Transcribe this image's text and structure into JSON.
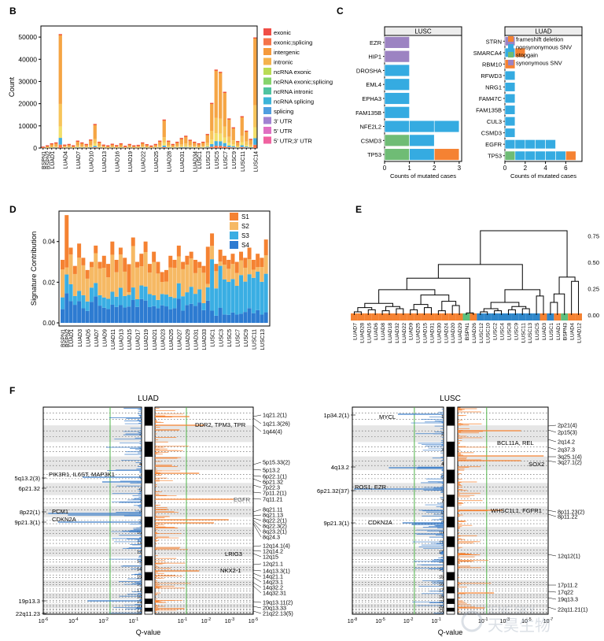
{
  "panel_letters": {
    "b": "B",
    "c": "C",
    "d": "D",
    "e": "E",
    "f": "F"
  },
  "watermark": {
    "brand": "GENE SKY",
    "cn": "天昊生物"
  },
  "colors": {
    "s1": "#f58232",
    "s2": "#f6b964",
    "s3": "#3aaee3",
    "s4": "#2d7bd1",
    "frameshift": "#f58232",
    "nonsyn": "#35abe1",
    "stopgain": "#6fbc75",
    "syn": "#9c83c2",
    "luad": "#f58232",
    "lusc": "#2e86c9",
    "other_leaf": "#5cc07e",
    "amp": "#f58232",
    "del": "#3a7cc8",
    "sig_line": "#4fb448"
  },
  "chart_data": [
    {
      "id": "B",
      "type": "bar",
      "stacked": true,
      "xlabel": "",
      "ylabel": "Count",
      "ylim": [
        0,
        55000
      ],
      "yticks": [
        0,
        10000,
        20000,
        30000,
        40000,
        50000
      ],
      "yticklabels": [
        "0",
        "10000",
        "20000",
        "30000",
        "40000",
        "50000"
      ],
      "legend_position": "right",
      "legend": [
        "exonic",
        "exonic;splicing",
        "intergenic",
        "intronic",
        "ncRNA exonic",
        "ncRNA exonic;splicing",
        "ncRNA intronic",
        "ncRNA splicing",
        "splicing",
        "3' UTR",
        "5' UTR",
        "5' UTR;3' UTR"
      ],
      "legend_colors": [
        "#f04e46",
        "#f5744a",
        "#f59a3c",
        "#f5b24d",
        "#b9dc55",
        "#86d46b",
        "#4fc3a0",
        "#3cb4d8",
        "#4f9ee0",
        "#a182d2",
        "#e070c2",
        "#f062a0"
      ],
      "categories": [
        "BSPN1",
        "BSPN2",
        "LUAD1",
        "LUAD2",
        "LUAD3",
        "LUAD4",
        "LUAD5",
        "LUAD6",
        "LUAD7",
        "LUAD8",
        "LUAD9",
        "LUAD10",
        "LUAD11",
        "LUAD12",
        "LUAD13",
        "LUAD14",
        "LUAD15",
        "LUAD16",
        "LUAD17",
        "LUAD18",
        "LUAD19",
        "LUAD20",
        "LUAD21",
        "LUAD22",
        "LUAD23",
        "LUAD24",
        "LUAD25",
        "LUAD26",
        "LUAD27",
        "LUAD28",
        "LUAD29",
        "LUAD30",
        "LUAD31",
        "LUAD32",
        "LUAD33",
        "LUAD34",
        "LUSC1",
        "LUSC2",
        "LUSC3",
        "LUSC4",
        "LUSC5",
        "LUSC6",
        "LUSC7",
        "LUSC8",
        "LUSC9",
        "LUSC10",
        "LUSC11",
        "LUSC12",
        "LUSC13",
        "LUSC14"
      ],
      "shown_tick_labels": [
        "BSPN1",
        "BSPN2",
        "LUAD1",
        "LUAD4",
        "LUAD7",
        "LUAD10",
        "LUAD13",
        "LUAD16",
        "LUAD19",
        "LUAD22",
        "LUAD25",
        "LUAD28",
        "LUAD31",
        "LUAD34",
        "LUSC1",
        "LUSC3",
        "LUSC5",
        "LUSC7",
        "LUSC9",
        "LUSC11",
        "LUSC14"
      ],
      "totals": [
        300,
        900,
        1800,
        2200,
        51000,
        1200,
        1500,
        900,
        3000,
        2200,
        1500,
        3500,
        10500,
        2500,
        1200,
        900,
        1600,
        1000,
        1800,
        700,
        1500,
        900,
        1100,
        2200,
        1400,
        800,
        1500,
        3000,
        12500,
        3000,
        1500,
        2500,
        4200,
        5200,
        3400,
        2500,
        1800,
        2500,
        6000,
        20000,
        35000,
        34000,
        25000,
        13000,
        9000,
        2800,
        14000,
        7500,
        3800,
        49500
      ],
      "fractions": {
        "intronic": 0.6,
        "intergenic": 0.2,
        "ncRNA intronic": 0.1,
        "ncRNA exonic": 0.04,
        "exonic": 0.03,
        "3' UTR": 0.03
      }
    },
    {
      "id": "C-LUSC",
      "type": "bar",
      "orientation": "horizontal",
      "stacked": true,
      "title": "LUSC",
      "xlabel": "Counts of mutated cases",
      "ylabel": "",
      "xlim": [
        0,
        3.1
      ],
      "xticks": [
        0,
        1,
        2,
        3
      ],
      "categories": [
        "EZR",
        "HIP1",
        "DROSHA",
        "EML4",
        "EPHA3",
        "FAM135B",
        "NFE2L2",
        "CSMD3",
        "TP53"
      ],
      "series": [
        {
          "name": "stopgain",
          "values": [
            0,
            0,
            0,
            0,
            0,
            0,
            0,
            1,
            1
          ]
        },
        {
          "name": "nonsynonymous SNV",
          "values": [
            0,
            0,
            1,
            1,
            1,
            1,
            3,
            1,
            1
          ]
        },
        {
          "name": "frameshift deletion",
          "values": [
            0,
            0,
            0,
            0,
            0,
            0,
            0,
            0,
            1
          ]
        },
        {
          "name": "synonymous SNV",
          "values": [
            1,
            1,
            0,
            0,
            0,
            0,
            0,
            0,
            0
          ]
        }
      ]
    },
    {
      "id": "C-LUAD",
      "type": "bar",
      "orientation": "horizontal",
      "stacked": true,
      "title": "LUAD",
      "xlabel": "Counts of mutated cases",
      "ylabel": "",
      "xlim": [
        0,
        7.6
      ],
      "xticks": [
        0,
        2,
        4,
        6
      ],
      "categories": [
        "STRN",
        "SMARCA4",
        "RBM10",
        "RFWD3",
        "NRG1",
        "FAM47C",
        "FAM135B",
        "CUL3",
        "CSMD3",
        "EGFR",
        "TP53"
      ],
      "legend": [
        "frameshift deletion",
        "nonsynonymous SNV",
        "stopgain",
        "synonymous SNV"
      ],
      "legend_position": "top-right",
      "series": [
        {
          "name": "stopgain",
          "values": [
            0,
            0,
            0,
            0,
            0,
            0,
            0,
            0,
            0,
            0,
            1
          ]
        },
        {
          "name": "nonsynonymous SNV",
          "values": [
            0,
            1,
            0,
            1,
            1,
            1,
            1,
            1,
            1,
            5,
            5
          ]
        },
        {
          "name": "frameshift deletion",
          "values": [
            0,
            1,
            1,
            0,
            0,
            0,
            0,
            0,
            0,
            0,
            1
          ]
        },
        {
          "name": "synonymous SNV",
          "values": [
            1,
            0,
            0,
            0,
            0,
            0,
            0,
            0,
            0,
            0,
            0
          ]
        }
      ]
    },
    {
      "id": "D",
      "type": "bar",
      "stacked": true,
      "xlabel": "",
      "ylabel": "Signature Contribution",
      "ylim": [
        0,
        0.055
      ],
      "yticks": [
        0,
        0.02,
        0.04
      ],
      "yticklabels": [
        "0.00",
        "0.02",
        "0.04"
      ],
      "legend": [
        "S1",
        "S2",
        "S3",
        "S4"
      ],
      "legend_position": "top-right",
      "categories": [
        "BSPN1",
        "BSPN2",
        "LUAD1",
        "LUAD2",
        "LUAD3",
        "LUAD4",
        "LUAD5",
        "LUAD6",
        "LUAD7",
        "LUAD8",
        "LUAD9",
        "LUAD10",
        "LUAD11",
        "LUAD12",
        "LUAD13",
        "LUAD14",
        "LUAD15",
        "LUAD16",
        "LUAD17",
        "LUAD18",
        "LUAD19",
        "LUAD20",
        "LUAD21",
        "LUAD22",
        "LUAD23",
        "LUAD24",
        "LUAD25",
        "LUAD26",
        "LUAD27",
        "LUAD28",
        "LUAD29",
        "LUAD30",
        "LUAD31",
        "LUAD32",
        "LUAD33",
        "LUAD34",
        "LUSC1",
        "LUSC2",
        "LUSC3",
        "LUSC4",
        "LUSC5",
        "LUSC6",
        "LUSC7",
        "LUSC8",
        "LUSC9",
        "LUSC10",
        "LUSC11",
        "LUSC12",
        "LUSC13",
        "LUSC14"
      ],
      "shown_tick_labels": [
        "BSPN1",
        "BSPN2",
        "LUAD1",
        "LUAD3",
        "LUAD5",
        "LUAD7",
        "LUAD9",
        "LUAD11",
        "LUAD13",
        "LUAD15",
        "LUAD17",
        "LUAD19",
        "LUAD21",
        "LUAD23",
        "LUAD25",
        "LUAD27",
        "LUAD29",
        "LUAD31",
        "LUAD33",
        "LUSC1",
        "LUSC3",
        "LUSC5",
        "LUSC7",
        "LUSC9",
        "LUSC11",
        "LUSC13"
      ],
      "totals": [
        0.031,
        0.053,
        0.037,
        0.028,
        0.039,
        0.032,
        0.026,
        0.03,
        0.038,
        0.03,
        0.033,
        0.029,
        0.04,
        0.031,
        0.037,
        0.032,
        0.027,
        0.042,
        0.03,
        0.034,
        0.04,
        0.029,
        0.035,
        0.03,
        0.025,
        0.026,
        0.033,
        0.031,
        0.038,
        0.03,
        0.033,
        0.035,
        0.031,
        0.03,
        0.028,
        0.033,
        0.044,
        0.029,
        0.036,
        0.033,
        0.031,
        0.034,
        0.03,
        0.035,
        0.032,
        0.037,
        0.031,
        0.034,
        0.032,
        0.041
      ]
    },
    {
      "id": "E",
      "type": "dendrogram",
      "yticks": [
        0,
        0.25,
        0.5,
        0.75
      ],
      "yticklabels": [
        "0.00",
        "0.25",
        "0.50",
        "0.75"
      ],
      "leaves": [
        "LUAD7",
        "LUAD28",
        "LUAD16",
        "LUAD6",
        "LUAD8",
        "LUAD18",
        "LUAD32",
        "LUAD22",
        "LUAD9",
        "LUAD25",
        "LUAD15",
        "LUAD31",
        "LUAD30",
        "LUAD24",
        "LUAD20",
        "LUAD29",
        "BSPN1",
        "LUAD26",
        "LUSC12",
        "LUSC10",
        "LUSC2",
        "LUSC4",
        "LUSC8",
        "LUSC9",
        "LUSC11",
        "LUSC13",
        "LUSC5",
        "LUAD3",
        "LUSC1",
        "LUAD1",
        "BSPN3",
        "LUAD4",
        "LUAD12"
      ]
    },
    {
      "id": "F",
      "type": "copy-number-significance",
      "xlabel": "Q-value",
      "panels": [
        {
          "title": "LUAD",
          "del_xticks": [
            "10^-6",
            "10^-4",
            "10^-2",
            "10^-1"
          ],
          "amp_xticks": [
            "10^-1",
            "10^-2",
            "10^-3",
            "10^-5"
          ],
          "chromosomes": [
            "1",
            "2",
            "3",
            "4",
            "5",
            "6",
            "7",
            "8",
            "9",
            "10",
            "11",
            "12",
            "13",
            "14",
            "15",
            "16",
            "17",
            "18",
            "19",
            "20",
            "21",
            "22"
          ],
          "left_labels": [
            "5q13.2(3)",
            "6p21.32",
            "8p22(1)",
            "9p21.3(1)",
            "19p13.3",
            "22q11.23"
          ],
          "del_genes": [
            "PIK3R1, IL6ST, MAP3K1",
            "PCM1",
            "CDKN2A"
          ],
          "amp_genes": [
            "DDR2, TPM3, TPR",
            "EGFR",
            "LRIG3",
            "NKX2-1"
          ],
          "right_labels": [
            "1q21.2(1)",
            "1q21.3(26)",
            "1q44(4)",
            "5p15.33(2)",
            "5p13.2",
            "6p22.1(1)",
            "6p21.32",
            "7p22.3",
            "7p11.2(1)",
            "7q11.21",
            "8q21.11",
            "8q21.13",
            "8q22.2(1)",
            "8q22.3(2)",
            "8q23.2(1)",
            "8q24.3",
            "12q14.1(4)",
            "12q14.2",
            "12q15",
            "12q21.1",
            "14q13.3(1)",
            "14q21.1",
            "14q23.1",
            "14q32.2",
            "14q32.31",
            "19q13.11(2)",
            "20q13.33",
            "21q22.13(5)"
          ]
        },
        {
          "title": "LUSC",
          "del_xticks": [
            "10^-8",
            "10^-5",
            "10^-2",
            "10^-1"
          ],
          "amp_xticks": [
            "10^-1",
            "10^-3",
            "10^-5",
            "10^-7"
          ],
          "chromosomes": [
            "1",
            "2",
            "3",
            "4",
            "5",
            "6",
            "7",
            "8",
            "9",
            "10",
            "11",
            "12",
            "13",
            "14",
            "15",
            "16",
            "17",
            "18",
            "19",
            "20",
            "21",
            "22"
          ],
          "left_labels": [
            "1p34.2(1)",
            "4q13.2",
            "6p21.32(37)",
            "9p21.3(1)"
          ],
          "del_genes": [
            "MYCL",
            "ROS1, EZR",
            "CDKN2A"
          ],
          "amp_genes": [
            "BCL11A, REL",
            "SOX2",
            "WHSC1L1, FGFR1"
          ],
          "right_labels": [
            "2p21(4)",
            "2p15(3)",
            "2q14.2",
            "2q37.3",
            "3q25.1(4)",
            "3q27.1(2)",
            "8p11.23(2)",
            "8p11.22",
            "12q12(1)",
            "17p11.2",
            "17q22",
            "19q13.3",
            "22q11.21(1)"
          ]
        }
      ]
    }
  ]
}
